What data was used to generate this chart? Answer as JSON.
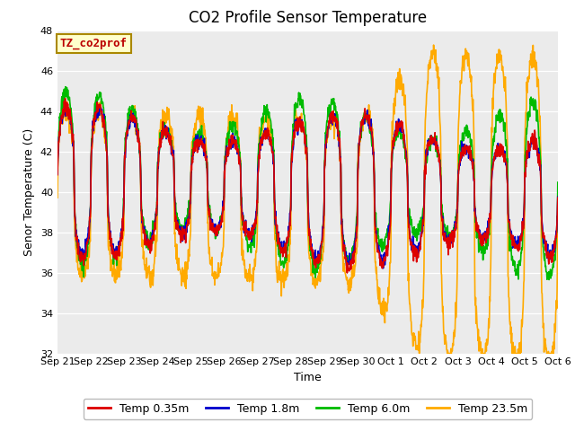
{
  "title": "CO2 Profile Sensor Temperature",
  "ylabel": "Senor Temperature (C)",
  "xlabel": "Time",
  "ylim": [
    32,
    48
  ],
  "yticks": [
    32,
    34,
    36,
    38,
    40,
    42,
    44,
    46,
    48
  ],
  "annotation_text": "TZ_co2prof",
  "legend_labels": [
    "Temp 0.35m",
    "Temp 1.8m",
    "Temp 6.0m",
    "Temp 23.5m"
  ],
  "line_colors": [
    "#dd0000",
    "#0000cc",
    "#00bb00",
    "#ffaa00"
  ],
  "line_width": 1.2,
  "fig_bg_color": "#ffffff",
  "plot_bg_color": "#ebebeb",
  "xtick_labels": [
    "Sep 21",
    "Sep 22",
    "Sep 23",
    "Sep 24",
    "Sep 25",
    "Sep 26",
    "Sep 27",
    "Sep 28",
    "Sep 29",
    "Sep 30",
    "Oct 1",
    "Oct 2",
    "Oct 3",
    "Oct 4",
    "Oct 5",
    "Oct 6"
  ],
  "title_fontsize": 12,
  "axis_fontsize": 9,
  "tick_fontsize": 8
}
